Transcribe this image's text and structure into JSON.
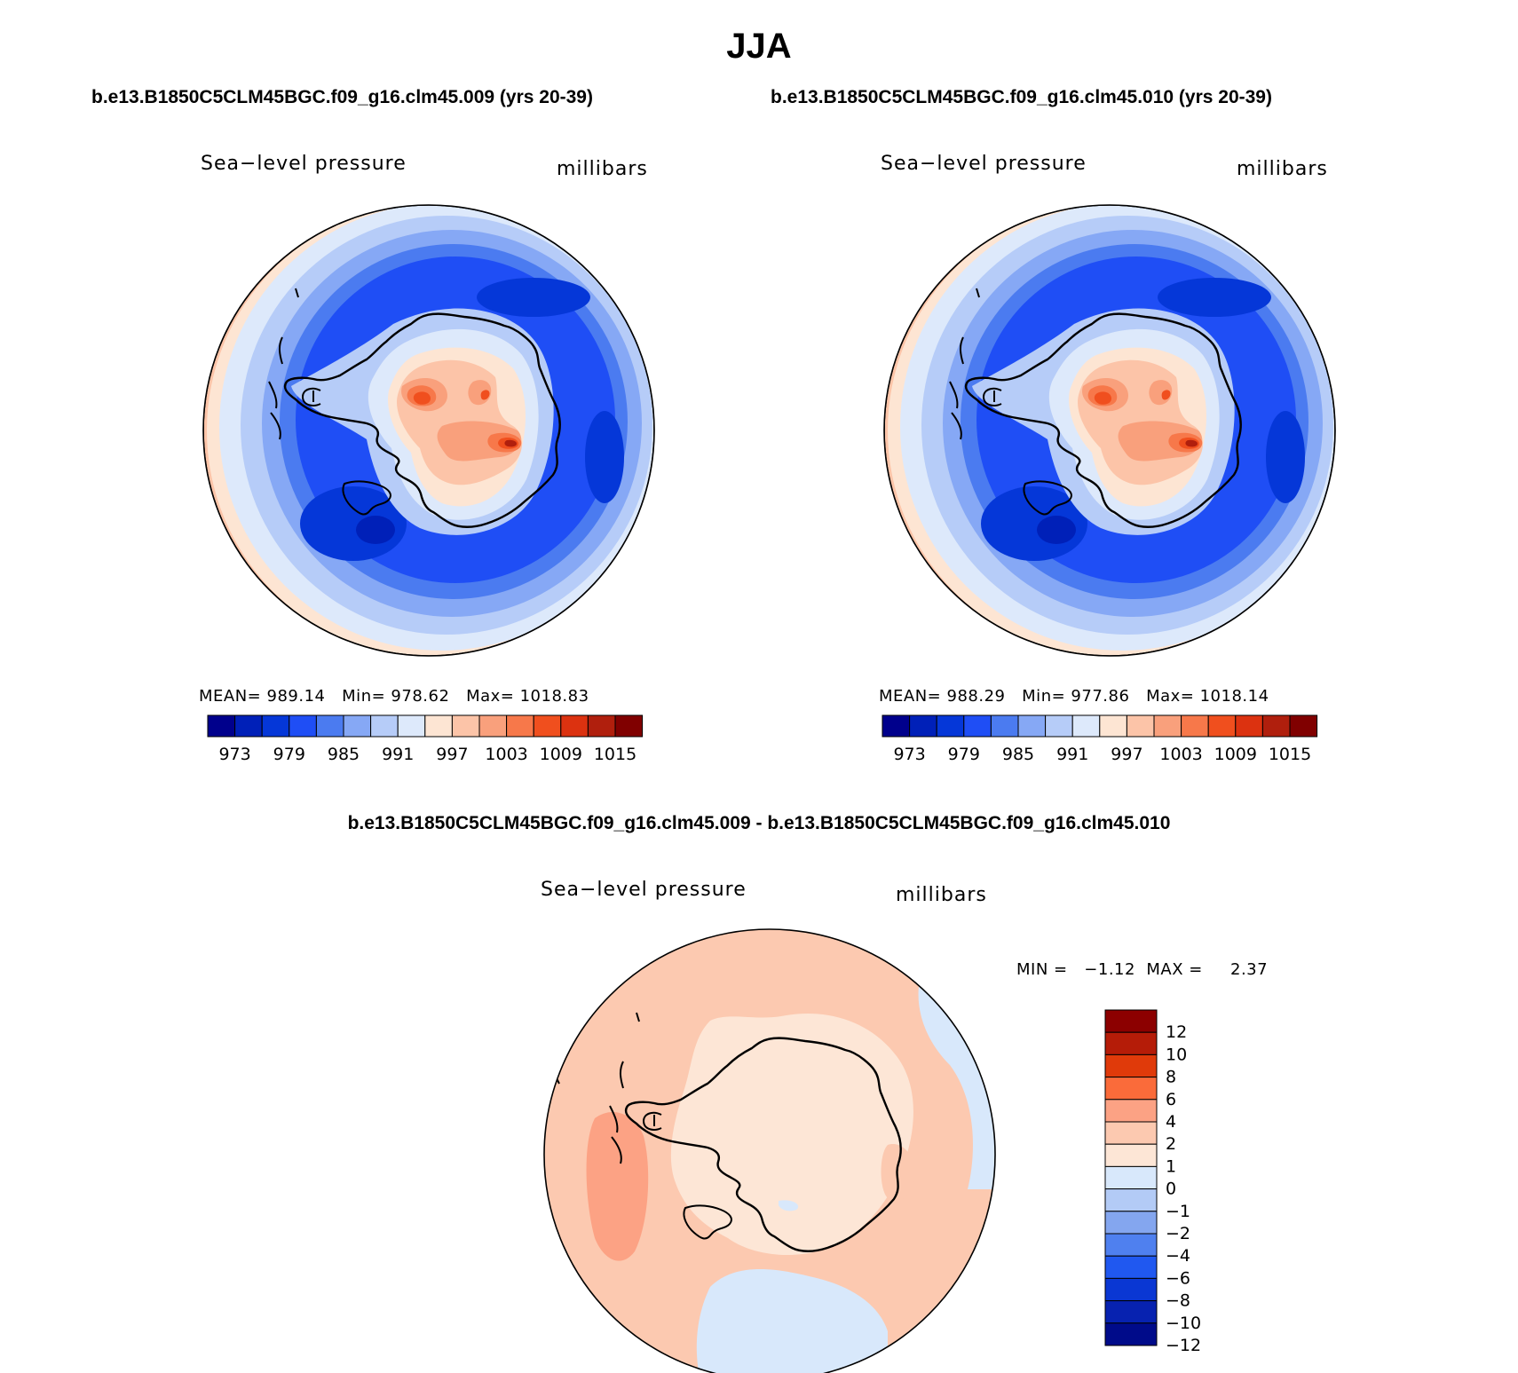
{
  "title": "JJA",
  "panels": [
    {
      "case_title": "b.e13.B1850C5CLM45BGC.f09_g16.clm45.009 (yrs 20-39)",
      "variable": "Sea−level pressure",
      "units": "millibars",
      "stats": {
        "mean_label": "MEAN=",
        "mean": "989.14",
        "min_label": "Min=",
        "min": "978.62",
        "max_label": "Max=",
        "max": "1018.83"
      },
      "colorbar_ticks": [
        "973",
        "979",
        "985",
        "991",
        "997",
        "1003",
        "1009",
        "1015"
      ]
    },
    {
      "case_title": "b.e13.B1850C5CLM45BGC.f09_g16.clm45.010 (yrs 20-39)",
      "variable": "Sea−level pressure",
      "units": "millibars",
      "stats": {
        "mean_label": "MEAN=",
        "mean": "988.29",
        "min_label": "Min=",
        "min": "977.86",
        "max_label": "Max=",
        "max": "1018.14"
      },
      "colorbar_ticks": [
        "973",
        "979",
        "985",
        "991",
        "997",
        "1003",
        "1009",
        "1015"
      ]
    }
  ],
  "difference": {
    "case_title": "b.e13.B1850C5CLM45BGC.f09_g16.clm45.009 - b.e13.B1850C5CLM45BGC.f09_g16.clm45.010",
    "variable": "Sea−level pressure",
    "units": "millibars",
    "min_label": "MIN =",
    "min": "−1.12",
    "max_label": "MAX =",
    "max": "2.37",
    "colorbar_ticks": [
      "12",
      "10",
      "8",
      "6",
      "4",
      "2",
      "1",
      "0",
      "−1",
      "−2",
      "−4",
      "−6",
      "−8",
      "−10",
      "−12"
    ]
  },
  "colors": {
    "field_scale": [
      "#00008c",
      "#0020b8",
      "#0537d8",
      "#1f4ef5",
      "#4b7bf0",
      "#86a8f5",
      "#b6ccf8",
      "#dde9fb",
      "#fde5d3",
      "#fcc4a8",
      "#f9a07c",
      "#f7784a",
      "#f04f1e",
      "#dc3210",
      "#b01f0d",
      "#800000"
    ],
    "diff_scale_top_to_bottom": [
      "#8c0000",
      "#b51c08",
      "#e03a0a",
      "#fa6b3a",
      "#fca284",
      "#fcc9b0",
      "#fde6d6",
      "#d8e8fb",
      "#b3cbf6",
      "#84a6ef",
      "#4f80ef",
      "#2058f0",
      "#0a37d3",
      "#0722b0",
      "#000b8a"
    ]
  }
}
